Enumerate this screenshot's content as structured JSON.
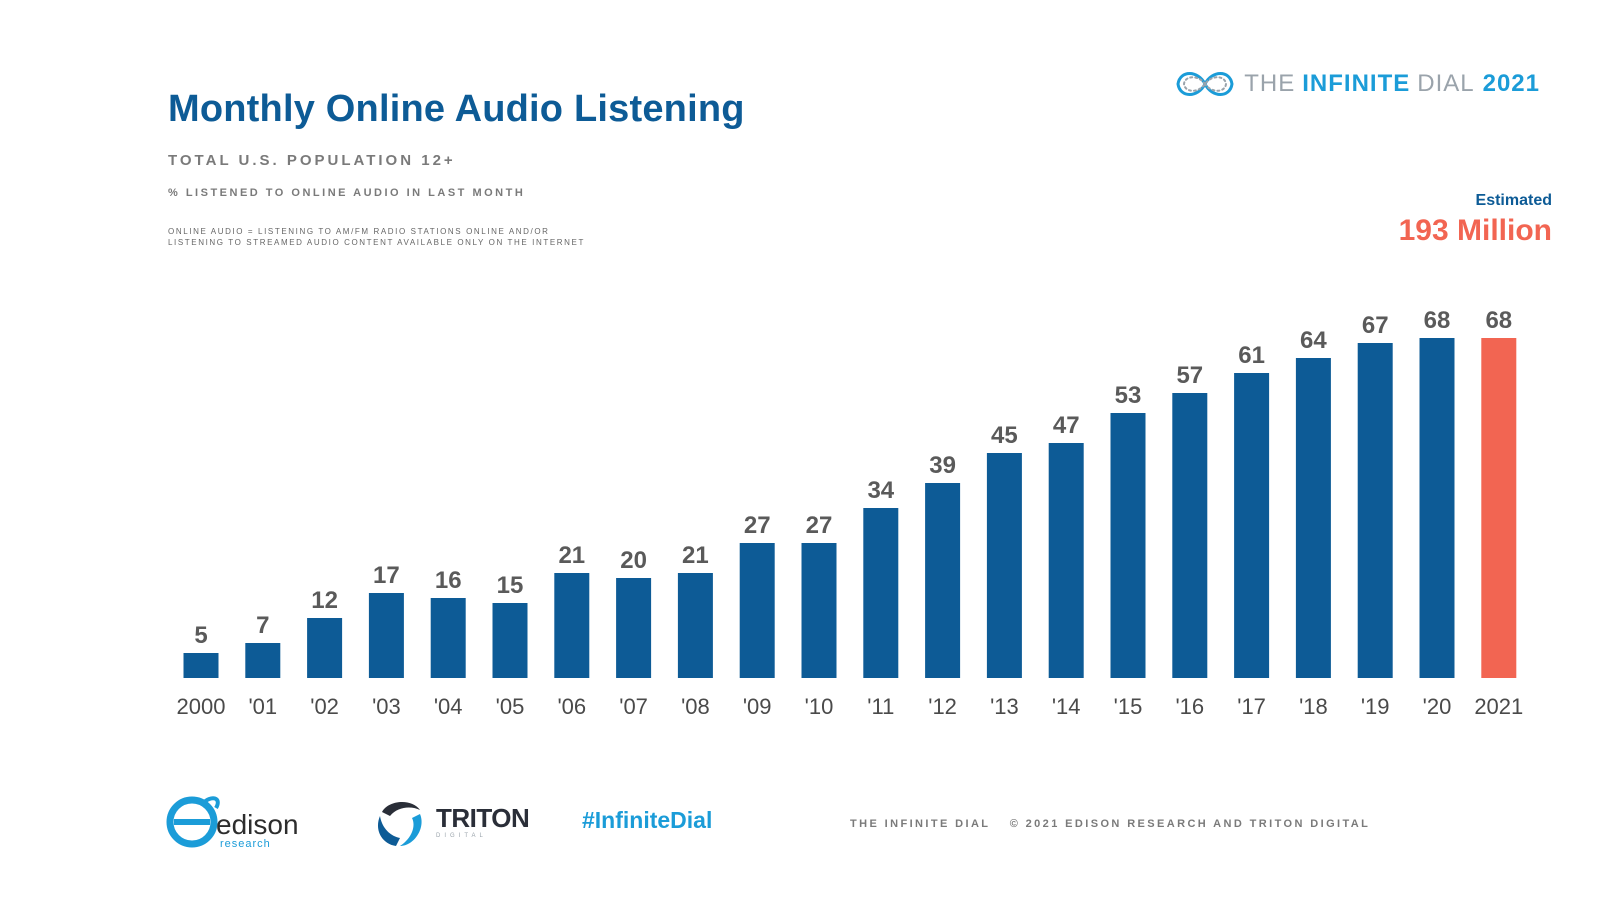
{
  "header": {
    "title": "Monthly Online Audio Listening",
    "subtitle": "TOTAL U.S. POPULATION 12+",
    "metric": "% LISTENED TO ONLINE AUDIO IN LAST MONTH",
    "definition_line1": "ONLINE AUDIO = LISTENING TO AM/FM RADIO STATIONS ONLINE AND/OR",
    "definition_line2": "LISTENING TO STREAMED AUDIO CONTENT AVAILABLE ONLY ON THE INTERNET"
  },
  "brand": {
    "the": "THE",
    "infinite": "INFINITE",
    "dial": "DIAL",
    "year": "2021",
    "icon": "infinity-wave-icon"
  },
  "estimate": {
    "label": "Estimated",
    "value": "193 Million"
  },
  "chart_data": {
    "type": "bar",
    "title": "Monthly Online Audio Listening",
    "xlabel": "",
    "ylabel": "% listened to online audio in last month",
    "ylim": [
      0,
      100
    ],
    "grid": false,
    "categories": [
      "2000",
      "'01",
      "'02",
      "'03",
      "'04",
      "'05",
      "'06",
      "'07",
      "'08",
      "'09",
      "'10",
      "'11",
      "'12",
      "'13",
      "'14",
      "'15",
      "'16",
      "'17",
      "'18",
      "'19",
      "'20",
      "2021"
    ],
    "values": [
      5,
      7,
      12,
      17,
      16,
      15,
      21,
      20,
      21,
      27,
      27,
      34,
      39,
      45,
      47,
      53,
      57,
      61,
      64,
      67,
      68,
      68
    ],
    "highlight_index": 21
  },
  "colors": {
    "bar": "#0d5b96",
    "highlight_bar": "#f26552",
    "accent": "#1b9cd8"
  },
  "footer": {
    "edison_name": "edison",
    "edison_sub": "research",
    "triton_name": "TRITON",
    "triton_sub": "DIGITAL",
    "hashtag": "#InfiniteDial",
    "credit_left": "THE INFINITE DIAL",
    "credit_right": "© 2021 EDISON RESEARCH AND TRITON DIGITAL"
  }
}
